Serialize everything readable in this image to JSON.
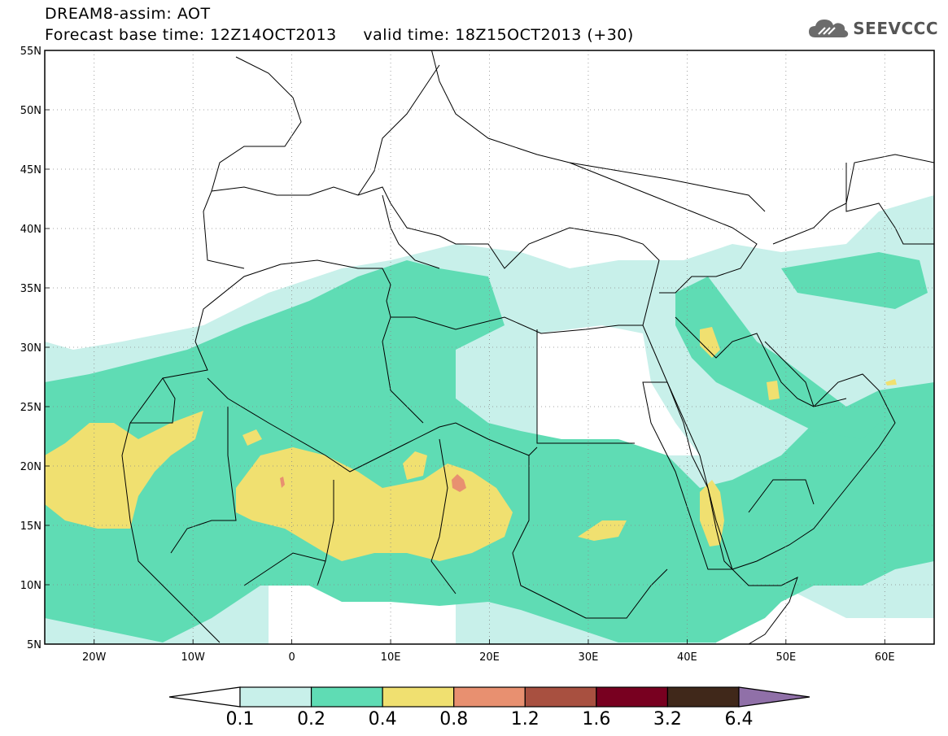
{
  "header": {
    "title_line1": "DREAM8-assim: AOT",
    "title_line2": "Forecast base time: 12Z14OCT2013     valid time: 18Z15OCT2013 (+30)",
    "logo_text": "SEEVCCC"
  },
  "map": {
    "lat_labels": [
      "55N",
      "50N",
      "45N",
      "40N",
      "35N",
      "30N",
      "25N",
      "20N",
      "15N",
      "10N",
      "5N"
    ],
    "lon_labels": [
      "20W",
      "10W",
      "0",
      "10E",
      "20E",
      "30E",
      "40E",
      "50E",
      "60E"
    ],
    "lat_range": [
      5,
      55
    ],
    "lon_range": [
      -25,
      65
    ]
  },
  "legend": {
    "labels": [
      "0.1",
      "0.2",
      "0.4",
      "0.8",
      "1.2",
      "1.6",
      "3.2",
      "6.4"
    ],
    "colors": [
      "#c8f0ea",
      "#5fdcb4",
      "#f0e070",
      "#e89070",
      "#a85040",
      "#780020",
      "#40281a"
    ],
    "under_color": "#ffffff",
    "over_color": "#9070a8"
  }
}
